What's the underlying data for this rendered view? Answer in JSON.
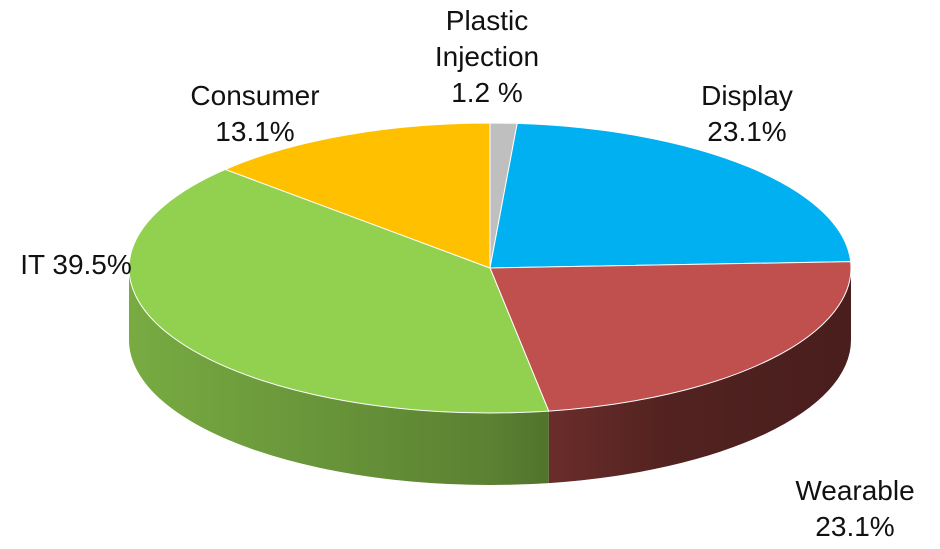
{
  "chart_data": {
    "type": "pie",
    "style": "3d",
    "slices": [
      {
        "label_lines": [
          "Plastic",
          "Injection",
          "1.2 %"
        ],
        "value": 1.2,
        "color": "#BFBFBF"
      },
      {
        "label_lines": [
          "Display",
          "23.1%"
        ],
        "value": 23.1,
        "color": "#00B0F0"
      },
      {
        "label_lines": [
          "Wearable",
          "23.1%"
        ],
        "value": 23.1,
        "color": "#C0504D"
      },
      {
        "label_lines": [
          "IT 39.5%"
        ],
        "value": 39.5,
        "color": "#92D050"
      },
      {
        "label_lines": [
          "Consumer",
          "13.1%"
        ],
        "value": 13.1,
        "color": "#FFC000"
      }
    ],
    "legend": "none"
  }
}
